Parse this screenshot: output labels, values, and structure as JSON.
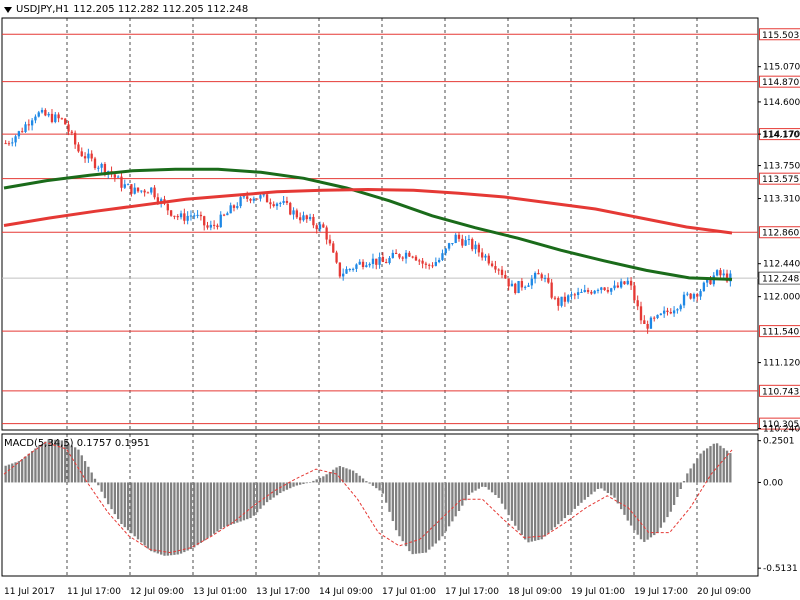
{
  "header": {
    "symbol": "USDJPY,H1",
    "ohlc": "112.205 112.282 112.205 112.248"
  },
  "macd_header": {
    "label": "MACD(5,34,5) 0.1757 0.1951"
  },
  "chart_data": [
    {
      "type": "candlestick",
      "title": "USDJPY,H1",
      "x_labels": [
        "11 Jul 2017",
        "11 Jul 17:00",
        "12 Jul 09:00",
        "13 Jul 01:00",
        "13 Jul 17:00",
        "14 Jul 09:00",
        "17 Jul 01:00",
        "17 Jul 17:00",
        "18 Jul 09:00",
        "19 Jul 01:00",
        "19 Jul 17:00",
        "20 Jul 09:00"
      ],
      "y_tick_labels": [
        "115.070",
        "114.600",
        "114.170",
        "113.750",
        "113.310",
        "112.440",
        "112.000",
        "111.120",
        "110.240"
      ],
      "ylim": [
        110.22,
        115.72
      ],
      "current_price": 112.248,
      "horizontal_levels": [
        115.503,
        114.87,
        114.17,
        113.575,
        112.86,
        111.54,
        110.743,
        110.305
      ],
      "colors": {
        "up": "#1e88e5",
        "down": "#e53935",
        "level": "#e53935",
        "ma_fast": "#1a6b1a",
        "ma_slow": "#e53935",
        "grid": "#000000"
      },
      "candles_close_approx": [
        114.05,
        114.2,
        114.45,
        114.4,
        114.35,
        113.95,
        113.8,
        113.7,
        113.5,
        113.4,
        113.45,
        113.2,
        113.05,
        113.1,
        112.9,
        113.05,
        113.25,
        113.35,
        113.3,
        113.25,
        113.1,
        113.0,
        112.9,
        112.3,
        112.4,
        112.5,
        112.45,
        112.55,
        112.6,
        112.4,
        112.5,
        112.8,
        112.7,
        112.55,
        112.4,
        112.1,
        112.2,
        112.3,
        111.9,
        112.0,
        112.05,
        112.15,
        112.1,
        112.2,
        111.6,
        111.7,
        111.85,
        112.0,
        112.1,
        112.3,
        112.248
      ],
      "ma_fast_approx": [
        113.45,
        113.55,
        113.62,
        113.68,
        113.7,
        113.7,
        113.66,
        113.58,
        113.45,
        113.28,
        113.08,
        112.92,
        112.78,
        112.62,
        112.48,
        112.35,
        112.25,
        112.23
      ],
      "ma_slow_approx": [
        112.95,
        113.05,
        113.14,
        113.22,
        113.3,
        113.35,
        113.4,
        113.42,
        113.43,
        113.42,
        113.38,
        113.33,
        113.25,
        113.17,
        113.05,
        112.93,
        112.85
      ]
    },
    {
      "type": "bar",
      "title": "MACD(5,34,5) 0.1757 0.1951",
      "y_tick_labels": [
        "0.2501",
        "0.00",
        "-0.5131"
      ],
      "ylim": [
        -0.56,
        0.29
      ],
      "main_value": 0.1757,
      "signal_value": 0.1951,
      "histogram_approx": [
        0.1,
        0.13,
        0.2,
        0.26,
        0.25,
        0.2,
        0.05,
        -0.12,
        -0.25,
        -0.33,
        -0.41,
        -0.44,
        -0.43,
        -0.39,
        -0.33,
        -0.27,
        -0.24,
        -0.21,
        -0.12,
        -0.06,
        -0.02,
        0.0,
        0.04,
        0.1,
        0.07,
        0.0,
        -0.06,
        -0.3,
        -0.43,
        -0.42,
        -0.34,
        -0.21,
        -0.07,
        -0.02,
        -0.09,
        -0.24,
        -0.36,
        -0.34,
        -0.26,
        -0.18,
        -0.1,
        -0.03,
        -0.09,
        -0.24,
        -0.36,
        -0.3,
        -0.16,
        0.05,
        0.18,
        0.24,
        0.1757
      ],
      "signal_approx": [
        0.05,
        0.15,
        0.24,
        0.2,
        0.0,
        -0.18,
        -0.32,
        -0.4,
        -0.42,
        -0.39,
        -0.32,
        -0.24,
        -0.14,
        -0.05,
        0.02,
        0.08,
        0.05,
        -0.1,
        -0.3,
        -0.38,
        -0.34,
        -0.22,
        -0.1,
        -0.1,
        -0.22,
        -0.33,
        -0.32,
        -0.24,
        -0.15,
        -0.08,
        -0.15,
        -0.3,
        -0.3,
        -0.15,
        0.05,
        0.1951
      ],
      "colors": {
        "histogram": "#808080",
        "signal": "#e53935"
      }
    }
  ]
}
